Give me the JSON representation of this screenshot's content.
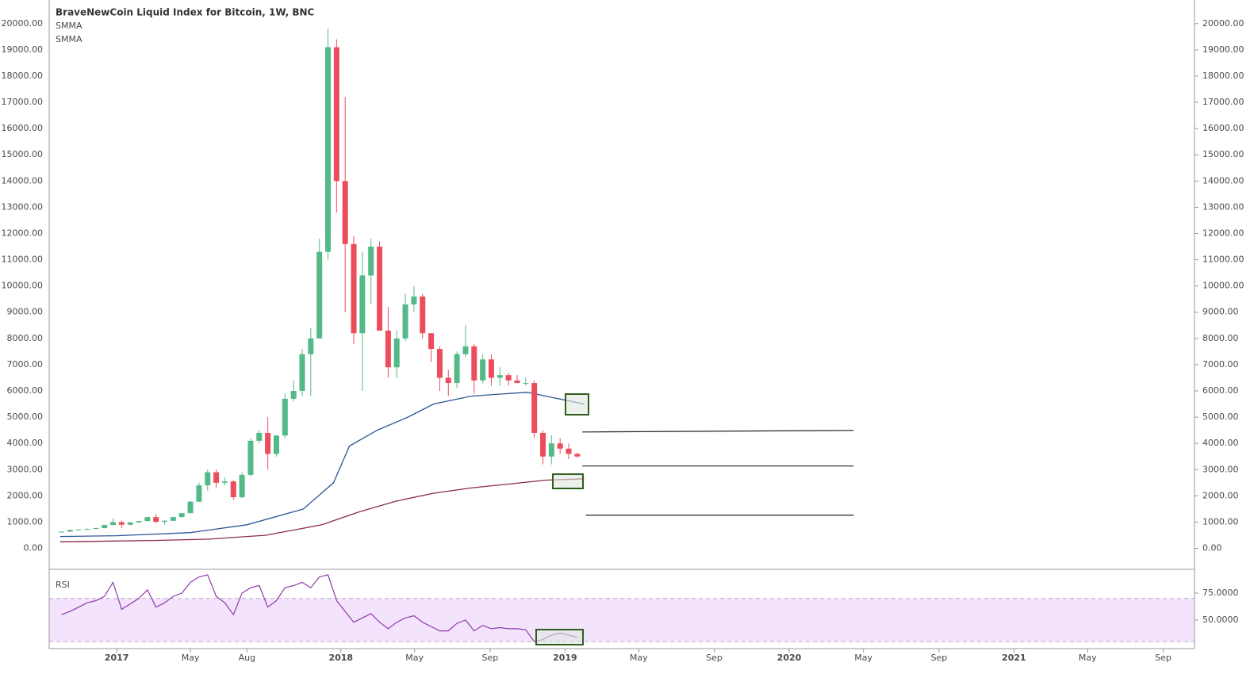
{
  "chart_data": [
    {
      "type": "candlestick",
      "title": "BraveNewCoin Liquid Index for Bitcoin, 1W, BNC",
      "up_color": "#53b987",
      "down_color": "#eb4d5c",
      "x": [
        "2016-10-03",
        "2016-10-17",
        "2016-10-31",
        "2016-11-14",
        "2016-11-28",
        "2016-12-12",
        "2016-12-26",
        "2017-01-09",
        "2017-01-23",
        "2017-02-06",
        "2017-02-20",
        "2017-03-06",
        "2017-03-20",
        "2017-04-03",
        "2017-04-17",
        "2017-05-01",
        "2017-05-15",
        "2017-05-29",
        "2017-06-12",
        "2017-06-26",
        "2017-07-10",
        "2017-07-24",
        "2017-08-07",
        "2017-08-21",
        "2017-09-04",
        "2017-09-18",
        "2017-10-02",
        "2017-10-16",
        "2017-10-30",
        "2017-11-13",
        "2017-11-27",
        "2017-12-11",
        "2017-12-25",
        "2018-01-08",
        "2018-01-22",
        "2018-02-05",
        "2018-02-19",
        "2018-03-05",
        "2018-03-19",
        "2018-04-02",
        "2018-04-16",
        "2018-04-30",
        "2018-05-14",
        "2018-05-28",
        "2018-06-11",
        "2018-06-25",
        "2018-07-09",
        "2018-07-23",
        "2018-08-06",
        "2018-08-20",
        "2018-09-03",
        "2018-09-17",
        "2018-10-01",
        "2018-10-15",
        "2018-10-29",
        "2018-11-12",
        "2018-11-26",
        "2018-12-10",
        "2018-12-24",
        "2019-01-07",
        "2019-01-21"
      ],
      "open": [
        610,
        638,
        700,
        720,
        740,
        770,
        890,
        1000,
        900,
        990,
        1040,
        1190,
        1010,
        1050,
        1190,
        1340,
        1780,
        2400,
        2900,
        2500,
        2550,
        1950,
        2800,
        4100,
        4400,
        3600,
        4300,
        5700,
        6000,
        7400,
        8000,
        11300,
        19100,
        14000,
        11600,
        8200,
        10400,
        11500,
        8300,
        6900,
        8000,
        9300,
        9600,
        8200,
        7600,
        6500,
        6300,
        7400,
        7700,
        6400,
        7200,
        6500,
        6600,
        6400,
        6300,
        6300,
        4400,
        3500,
        4000,
        3800,
        3600
      ],
      "high": [
        640,
        720,
        740,
        760,
        790,
        900,
        1150,
        1050,
        1000,
        1050,
        1200,
        1300,
        1080,
        1200,
        1350,
        1800,
        2500,
        3000,
        3000,
        2700,
        2600,
        2900,
        4200,
        4500,
        5000,
        4300,
        5900,
        6400,
        7600,
        8400,
        11800,
        19800,
        19400,
        17200,
        11900,
        11300,
        11800,
        11700,
        9200,
        8300,
        9700,
        10000,
        9700,
        8200,
        7700,
        6800,
        7500,
        8500,
        7800,
        7400,
        7400,
        6900,
        6700,
        6600,
        6500,
        6400,
        4500,
        4300,
        4200,
        4000,
        3650
      ],
      "low": [
        600,
        630,
        690,
        700,
        730,
        760,
        880,
        760,
        880,
        960,
        1030,
        950,
        900,
        1040,
        1180,
        1330,
        1760,
        2200,
        2300,
        2400,
        1850,
        1900,
        2750,
        4000,
        3000,
        3500,
        4200,
        5600,
        5800,
        5800,
        8000,
        11000,
        12800,
        9000,
        7800,
        6000,
        9300,
        8300,
        6500,
        6500,
        7900,
        9000,
        8000,
        7100,
        6000,
        5800,
        6100,
        7300,
        5900,
        6300,
        6200,
        6200,
        6200,
        6300,
        6200,
        4200,
        3200,
        3200,
        3600,
        3400,
        3450
      ],
      "close": [
        638,
        700,
        720,
        740,
        770,
        890,
        1000,
        900,
        990,
        1040,
        1190,
        1010,
        1050,
        1190,
        1340,
        1780,
        2400,
        2900,
        2500,
        2550,
        1950,
        2800,
        4100,
        4400,
        3600,
        4300,
        5700,
        6000,
        7400,
        8000,
        11300,
        19100,
        14000,
        11600,
        8200,
        10400,
        11500,
        8300,
        6900,
        8000,
        9300,
        9600,
        8200,
        7600,
        6500,
        6300,
        7400,
        7700,
        6400,
        7200,
        6500,
        6600,
        6400,
        6300,
        6300,
        4400,
        3500,
        4000,
        3800,
        3600,
        3500
      ],
      "lines": [
        {
          "name": "SMMA",
          "color": "#2f5597",
          "x": [
            "2016-10-01",
            "2017-01-01",
            "2017-05-01",
            "2017-08-01",
            "2017-11-01",
            "2017-12-20",
            "2018-01-15",
            "2018-03-01",
            "2018-04-20",
            "2018-06-01",
            "2018-08-01",
            "2018-10-01",
            "2018-11-01",
            "2018-12-01",
            "2019-02-01"
          ],
          "values": [
            450,
            480,
            600,
            900,
            1500,
            2500,
            3900,
            4500,
            5000,
            5500,
            5800,
            5900,
            5950,
            5800,
            5500
          ]
        },
        {
          "name": "SMMA",
          "color": "#8b2a4a",
          "x": [
            "2016-10-01",
            "2017-03-01",
            "2017-06-01",
            "2017-09-01",
            "2017-12-01",
            "2018-02-01",
            "2018-04-01",
            "2018-06-01",
            "2018-08-01",
            "2018-10-01",
            "2018-12-01",
            "2019-02-01"
          ],
          "values": [
            250,
            300,
            350,
            500,
            900,
            1400,
            1800,
            2100,
            2300,
            2450,
            2600,
            2650
          ]
        }
      ],
      "drawings": [
        {
          "x": [
            "2019-01-29",
            "2020-04-15"
          ],
          "values": [
            4434,
            4495
          ]
        },
        {
          "x": [
            "2019-01-29",
            "2020-04-15"
          ],
          "values": [
            3137,
            3137
          ]
        },
        {
          "x": [
            "2019-02-04",
            "2020-04-15"
          ],
          "values": [
            1267,
            1267
          ]
        }
      ],
      "xlim": [
        "2016-09-13",
        "2021-10-22"
      ],
      "xticks": [
        {
          "value": "2017-01-01",
          "label": "2017"
        },
        {
          "value": "2017-05-01",
          "label": "May"
        },
        {
          "value": "2017-08-01",
          "label": "Aug"
        },
        {
          "value": "2018-01-01",
          "label": "2018"
        },
        {
          "value": "2018-05-01",
          "label": "May"
        },
        {
          "value": "2018-09-01",
          "label": "Sep"
        },
        {
          "value": "2019-01-01",
          "label": "2019"
        },
        {
          "value": "2019-05-01",
          "label": "May"
        },
        {
          "value": "2019-09-01",
          "label": "Sep"
        },
        {
          "value": "2020-01-01",
          "label": "2020"
        },
        {
          "value": "2020-05-01",
          "label": "May"
        },
        {
          "value": "2020-09-01",
          "label": "Sep"
        },
        {
          "value": "2021-01-01",
          "label": "2021"
        },
        {
          "value": "2021-05-01",
          "label": "May"
        },
        {
          "value": "2021-09-01",
          "label": "Sep"
        }
      ],
      "ylim": [
        -800,
        20900
      ],
      "yticks": [
        {
          "value": 0,
          "label": "0.00"
        },
        {
          "value": 1000,
          "label": "1000.00"
        },
        {
          "value": 2000,
          "label": "2000.00"
        },
        {
          "value": 3000,
          "label": "3000.00"
        },
        {
          "value": 4000,
          "label": "4000.00"
        },
        {
          "value": 5000,
          "label": "5000.00"
        },
        {
          "value": 6000,
          "label": "6000.00"
        },
        {
          "value": 7000,
          "label": "7000.00"
        },
        {
          "value": 8000,
          "label": "8000.00"
        },
        {
          "value": 9000,
          "label": "9000.00"
        },
        {
          "value": 10000,
          "label": "10000.00"
        },
        {
          "value": 11000,
          "label": "11000.00"
        },
        {
          "value": 12000,
          "label": "12000.00"
        },
        {
          "value": 13000,
          "label": "13000.00"
        },
        {
          "value": 14000,
          "label": "14000.00"
        },
        {
          "value": 15000,
          "label": "15000.00"
        },
        {
          "value": 16000,
          "label": "16000.00"
        },
        {
          "value": 17000,
          "label": "17000.00"
        },
        {
          "value": 18000,
          "label": "18000.00"
        },
        {
          "value": 19000,
          "label": "19000.00"
        },
        {
          "value": 20000,
          "label": "20000.00"
        }
      ]
    },
    {
      "type": "line",
      "title": "RSI",
      "color": "#8e3aa8",
      "band": [
        30,
        70
      ],
      "band_color": "#f3e3fc",
      "x": [
        "2016-10-03",
        "2016-10-17",
        "2016-10-31",
        "2016-11-14",
        "2016-11-28",
        "2016-12-12",
        "2016-12-26",
        "2017-01-09",
        "2017-01-23",
        "2017-02-06",
        "2017-02-20",
        "2017-03-06",
        "2017-03-20",
        "2017-04-03",
        "2017-04-17",
        "2017-05-01",
        "2017-05-15",
        "2017-05-29",
        "2017-06-12",
        "2017-06-26",
        "2017-07-10",
        "2017-07-24",
        "2017-08-07",
        "2017-08-21",
        "2017-09-04",
        "2017-09-18",
        "2017-10-02",
        "2017-10-16",
        "2017-10-30",
        "2017-11-13",
        "2017-11-27",
        "2017-12-11",
        "2017-12-25",
        "2018-01-08",
        "2018-01-22",
        "2018-02-05",
        "2018-02-19",
        "2018-03-05",
        "2018-03-19",
        "2018-04-02",
        "2018-04-16",
        "2018-04-30",
        "2018-05-14",
        "2018-05-28",
        "2018-06-11",
        "2018-06-25",
        "2018-07-09",
        "2018-07-23",
        "2018-08-06",
        "2018-08-20",
        "2018-09-03",
        "2018-09-17",
        "2018-10-01",
        "2018-10-15",
        "2018-10-29",
        "2018-11-12",
        "2018-11-26",
        "2018-12-10",
        "2018-12-24",
        "2019-01-07",
        "2019-01-21"
      ],
      "values": [
        55,
        58,
        62,
        66,
        68,
        72,
        85,
        60,
        65,
        70,
        78,
        62,
        66,
        72,
        75,
        85,
        90,
        92,
        72,
        66,
        55,
        75,
        80,
        82,
        62,
        68,
        80,
        82,
        85,
        80,
        90,
        92,
        68,
        58,
        48,
        52,
        56,
        48,
        42,
        48,
        52,
        54,
        48,
        44,
        40,
        40,
        47,
        50,
        40,
        45,
        42,
        43,
        42,
        42,
        41,
        30,
        32,
        36,
        38,
        36,
        34
      ],
      "xlim": [
        "2016-09-13",
        "2021-10-22"
      ],
      "ylim": [
        23.5,
        95.6
      ],
      "yticks": [
        {
          "value": 50,
          "label": "50.0000"
        },
        {
          "value": 75,
          "label": "75.0000"
        }
      ]
    }
  ]
}
